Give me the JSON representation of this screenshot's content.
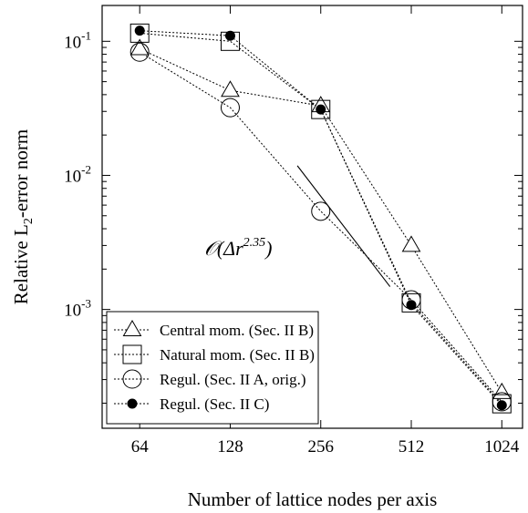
{
  "chart_data": {
    "type": "line",
    "xscale": "log2",
    "yscale": "log10",
    "x": [
      64,
      128,
      256,
      512,
      1024
    ],
    "xticks": [
      "64",
      "128",
      "256",
      "512",
      "1024"
    ],
    "xlim": [
      48,
      1200
    ],
    "ylim": [
      0.00013,
      0.185
    ],
    "yticks": [
      {
        "base": "10",
        "exp": "-1",
        "value": 0.1
      },
      {
        "base": "10",
        "exp": "-2",
        "value": 0.01
      },
      {
        "base": "10",
        "exp": "-3",
        "value": 0.001
      }
    ],
    "xlabel": "Number of lattice nodes per axis",
    "ylabel": {
      "prefix": "Relative L",
      "sub": "2",
      "suffix": "-error norm"
    },
    "legend_position": "bottom-left",
    "series": [
      {
        "name": "Central mom. (Sec. II B)",
        "marker": "triangle",
        "values": [
          0.088,
          0.043,
          0.033,
          0.003,
          0.00024
        ]
      },
      {
        "name": "Natural mom. (Sec. II B)",
        "marker": "square",
        "values": [
          0.115,
          0.1,
          0.031,
          0.00112,
          0.000198
        ]
      },
      {
        "name": "Regul. (Sec. II A, orig.)",
        "marker": "circle",
        "values": [
          0.083,
          0.032,
          0.0054,
          0.00118,
          0.000205
        ]
      },
      {
        "name": "Regul. (Sec. II C)",
        "marker": "dot",
        "values": [
          0.12,
          0.11,
          0.031,
          0.00108,
          0.000193
        ]
      }
    ],
    "annotation": {
      "label": {
        "prefix": "𝒪(Δr",
        "exp": "2.35",
        "suffix": ")"
      },
      "line": {
        "x": [
          214,
          435
        ],
        "y": [
          0.0118,
          0.00148
        ]
      }
    }
  }
}
